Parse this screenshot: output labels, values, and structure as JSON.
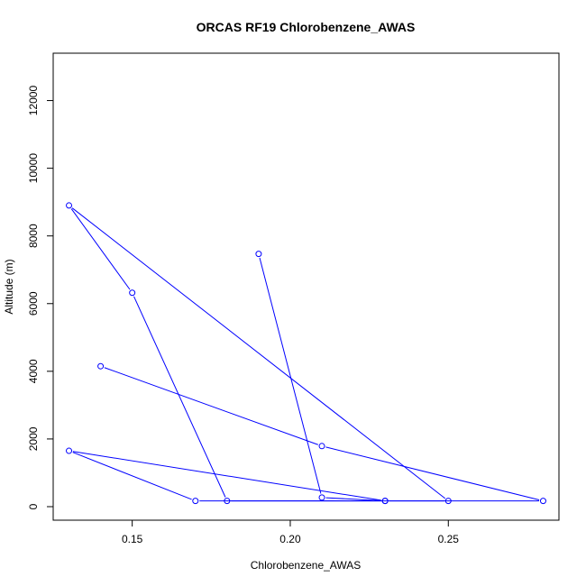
{
  "chart_data": {
    "type": "line",
    "title": "ORCAS RF19 Chlorobenzene_AWAS",
    "xlabel": "Chlorobenzene_AWAS",
    "ylabel": "Altitude (m)",
    "xlim": [
      0.125,
      0.285
    ],
    "ylim": [
      -400,
      13400
    ],
    "x_ticks": [
      0.15,
      0.2,
      0.25
    ],
    "x_tick_labels": [
      "0.15",
      "0.20",
      "0.25"
    ],
    "y_ticks": [
      0,
      2000,
      4000,
      6000,
      8000,
      10000,
      12000
    ],
    "y_tick_labels": [
      "0",
      "2000",
      "4000",
      "6000",
      "8000",
      "10000",
      "12000"
    ],
    "grid": false,
    "legend": "none",
    "series": [
      {
        "color": "#0000ff",
        "marker": "open-circle",
        "points": [
          {
            "x": 0.19,
            "y": 7470
          },
          {
            "x": 0.21,
            "y": 270
          },
          {
            "x": 0.23,
            "y": 170
          },
          {
            "x": 0.18,
            "y": 170
          },
          {
            "x": 0.15,
            "y": 6320
          },
          {
            "x": 0.13,
            "y": 8900
          },
          {
            "x": 0.25,
            "y": 170
          },
          {
            "x": 0.17,
            "y": 170
          },
          {
            "x": 0.13,
            "y": 1650
          },
          {
            "x": 0.23,
            "y": 170
          },
          {
            "x": 0.28,
            "y": 170
          },
          {
            "x": 0.21,
            "y": 1790
          },
          {
            "x": 0.14,
            "y": 4150
          }
        ]
      }
    ]
  }
}
